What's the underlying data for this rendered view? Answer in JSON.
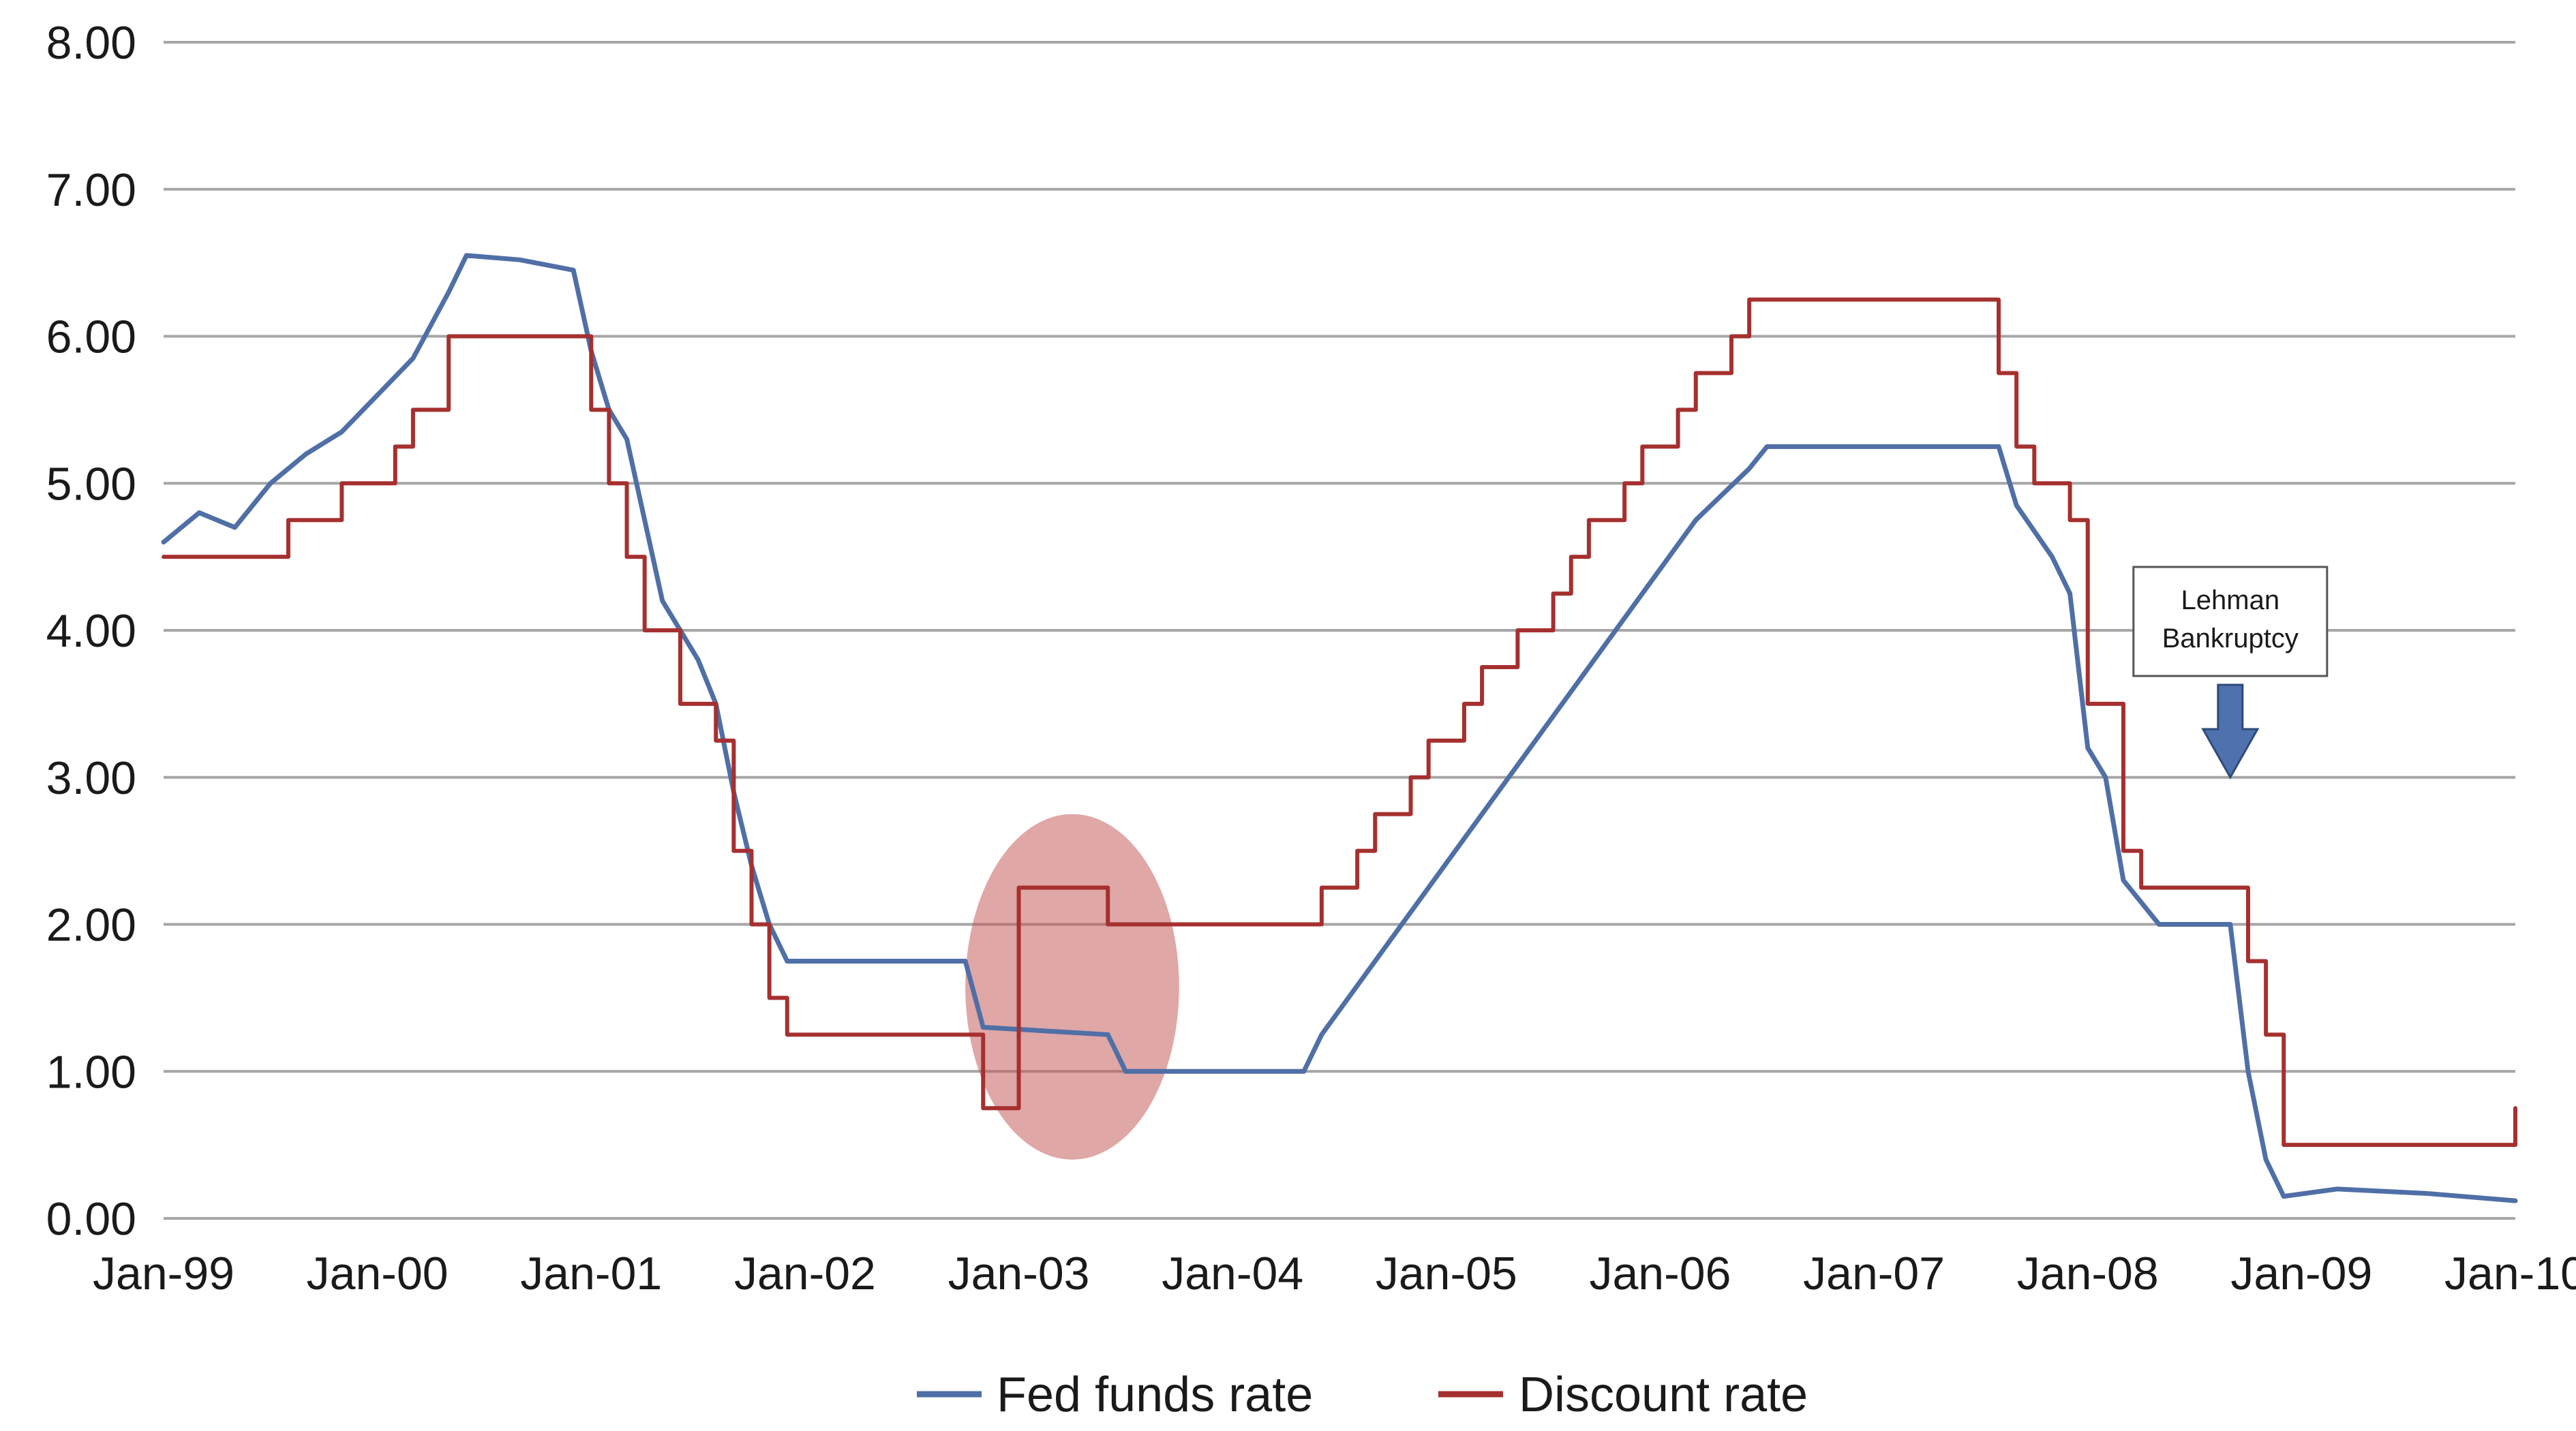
{
  "chart_data": {
    "type": "line",
    "title": "",
    "xlabel": "",
    "ylabel": "",
    "x_ticks": [
      "Jan-99",
      "Jan-00",
      "Jan-01",
      "Jan-02",
      "Jan-03",
      "Jan-04",
      "Jan-05",
      "Jan-06",
      "Jan-07",
      "Jan-08",
      "Jan-09",
      "Jan-10"
    ],
    "y_ticks": [
      "0.00",
      "1.00",
      "2.00",
      "3.00",
      "4.00",
      "5.00",
      "6.00",
      "7.00",
      "8.00"
    ],
    "xlim": [
      "1999-01",
      "2010-01"
    ],
    "ylim": [
      0,
      8
    ],
    "grid": "horizontal",
    "legend_position": "bottom",
    "series": [
      {
        "name": "Fed funds rate",
        "color": "#4f6fa6",
        "points": [
          [
            "1999-01",
            4.6
          ],
          [
            "1999-03",
            4.8
          ],
          [
            "1999-05",
            4.7
          ],
          [
            "1999-07",
            5.0
          ],
          [
            "1999-09",
            5.2
          ],
          [
            "1999-11",
            5.35
          ],
          [
            "2000-01",
            5.6
          ],
          [
            "2000-03",
            5.85
          ],
          [
            "2000-05",
            6.3
          ],
          [
            "2000-06",
            6.55
          ],
          [
            "2000-09",
            6.52
          ],
          [
            "2000-12",
            6.45
          ],
          [
            "2001-01",
            5.9
          ],
          [
            "2001-02",
            5.5
          ],
          [
            "2001-03",
            5.3
          ],
          [
            "2001-04",
            4.75
          ],
          [
            "2001-05",
            4.2
          ],
          [
            "2001-07",
            3.8
          ],
          [
            "2001-08",
            3.5
          ],
          [
            "2001-09",
            2.9
          ],
          [
            "2001-10",
            2.4
          ],
          [
            "2001-11",
            2.0
          ],
          [
            "2001-12",
            1.75
          ],
          [
            "2002-06",
            1.75
          ],
          [
            "2002-10",
            1.75
          ],
          [
            "2002-11",
            1.3
          ],
          [
            "2003-06",
            1.25
          ],
          [
            "2003-07",
            1.0
          ],
          [
            "2004-05",
            1.0
          ],
          [
            "2004-06",
            1.25
          ],
          [
            "2004-09",
            1.75
          ],
          [
            "2004-12",
            2.25
          ],
          [
            "2005-03",
            2.75
          ],
          [
            "2005-06",
            3.25
          ],
          [
            "2005-09",
            3.75
          ],
          [
            "2005-12",
            4.25
          ],
          [
            "2006-03",
            4.75
          ],
          [
            "2006-06",
            5.1
          ],
          [
            "2006-07",
            5.25
          ],
          [
            "2007-08",
            5.25
          ],
          [
            "2007-09",
            4.85
          ],
          [
            "2007-11",
            4.5
          ],
          [
            "2007-12",
            4.25
          ],
          [
            "2008-01",
            3.2
          ],
          [
            "2008-02",
            3.0
          ],
          [
            "2008-03",
            2.3
          ],
          [
            "2008-05",
            2.0
          ],
          [
            "2008-09",
            2.0
          ],
          [
            "2008-10",
            1.0
          ],
          [
            "2008-11",
            0.4
          ],
          [
            "2008-12",
            0.15
          ],
          [
            "2009-03",
            0.2
          ],
          [
            "2009-08",
            0.17
          ],
          [
            "2010-01",
            0.12
          ]
        ]
      },
      {
        "name": "Discount rate",
        "color": "#a5302f",
        "steps": [
          [
            "1999-01",
            4.5
          ],
          [
            "1999-08",
            4.75
          ],
          [
            "1999-11",
            5.0
          ],
          [
            "2000-02",
            5.25
          ],
          [
            "2000-03",
            5.5
          ],
          [
            "2000-05",
            6.0
          ],
          [
            "2001-01",
            5.5
          ],
          [
            "2001-02",
            5.0
          ],
          [
            "2001-03",
            4.5
          ],
          [
            "2001-04",
            4.0
          ],
          [
            "2001-06",
            3.5
          ],
          [
            "2001-08",
            3.25
          ],
          [
            "2001-09",
            2.5
          ],
          [
            "2001-10",
            2.0
          ],
          [
            "2001-11",
            1.5
          ],
          [
            "2001-12",
            1.25
          ],
          [
            "2002-11",
            0.75
          ],
          [
            "2003-01",
            2.25
          ],
          [
            "2003-06",
            2.0
          ],
          [
            "2004-06",
            2.25
          ],
          [
            "2004-08",
            2.5
          ],
          [
            "2004-09",
            2.75
          ],
          [
            "2004-11",
            3.0
          ],
          [
            "2004-12",
            3.25
          ],
          [
            "2005-02",
            3.5
          ],
          [
            "2005-03",
            3.75
          ],
          [
            "2005-05",
            4.0
          ],
          [
            "2005-07",
            4.25
          ],
          [
            "2005-08",
            4.5
          ],
          [
            "2005-09",
            4.75
          ],
          [
            "2005-11",
            5.0
          ],
          [
            "2005-12",
            5.25
          ],
          [
            "2006-02",
            5.5
          ],
          [
            "2006-03",
            5.75
          ],
          [
            "2006-05",
            6.0
          ],
          [
            "2006-06",
            6.25
          ],
          [
            "2007-08",
            5.75
          ],
          [
            "2007-09",
            5.25
          ],
          [
            "2007-10",
            5.0
          ],
          [
            "2007-12",
            4.75
          ],
          [
            "2008-01",
            3.5
          ],
          [
            "2008-03",
            2.5
          ],
          [
            "2008-04",
            2.25
          ],
          [
            "2008-10",
            1.75
          ],
          [
            "2008-11",
            1.25
          ],
          [
            "2008-12",
            0.5
          ],
          [
            "2010-01",
            0.75
          ]
        ]
      }
    ],
    "annotations": [
      {
        "label_lines": [
          "Lehman",
          "Bankruptcy"
        ],
        "x": "2008-09",
        "y": 3.0,
        "marker": "down-arrow"
      },
      {
        "label_lines": [],
        "marker": "ellipse",
        "x_range": [
          "2002-10",
          "2003-10"
        ],
        "y_range": [
          0.4,
          2.75
        ],
        "color": "#c0504d"
      }
    ]
  }
}
